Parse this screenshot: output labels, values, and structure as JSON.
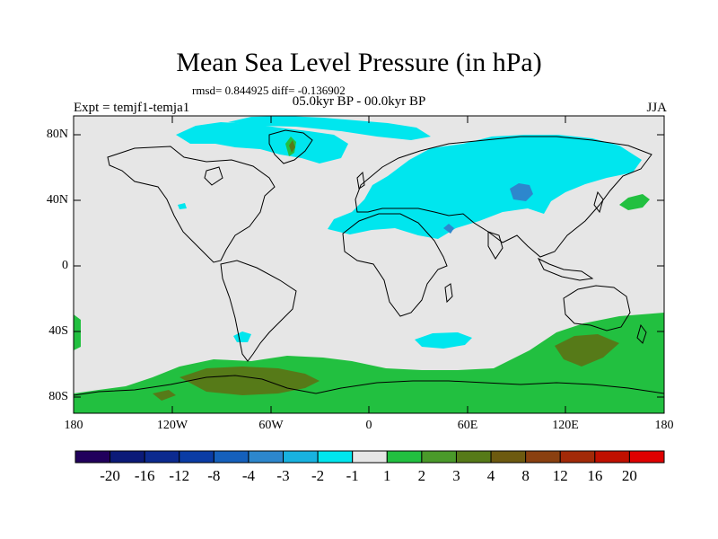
{
  "title": "Mean Sea Level Pressure (in hPa)",
  "stats": "rmsd= 0.844925 diff= -0.136902",
  "period": "05.0kyr BP - 00.0kyr BP",
  "experiment": "Expt = temjf1-temja1",
  "season": "JJA",
  "lat_labels": [
    "80N",
    "40N",
    "0",
    "40S",
    "80S"
  ],
  "lon_labels": [
    "180",
    "120W",
    "60W",
    "0",
    "60E",
    "120E",
    "180"
  ],
  "colorbar": {
    "colors": [
      "#21005c",
      "#0b1a78",
      "#0c2a8f",
      "#0a3ca5",
      "#1560bc",
      "#2d87cd",
      "#18b2e0",
      "#00e6ee",
      "#e6e6e6",
      "#22c040",
      "#4a9a2a",
      "#567a18",
      "#6d5a10",
      "#8a4010",
      "#a22a08",
      "#c01000",
      "#e00000"
    ],
    "labels": [
      "-20",
      "-16",
      "-12",
      "-8",
      "-4",
      "-3",
      "-2",
      "-1",
      "1",
      "2",
      "3",
      "4",
      "8",
      "12",
      "16",
      "20"
    ]
  },
  "colors": {
    "land_neutral": "#e6e6e6",
    "neg_light": "#00e6ee",
    "neg_mid": "#2d87cd",
    "pos_light": "#22c040",
    "pos_mid": "#567a18"
  }
}
